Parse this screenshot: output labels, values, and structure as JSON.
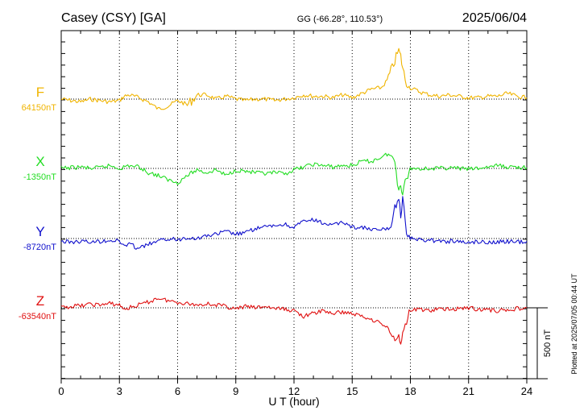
{
  "header": {
    "station": "Casey (CSY)  [GA]",
    "coords": "GG (-66.28°, 110.53°)",
    "date": "2025/06/04"
  },
  "footer_note": "Plotted at 2025/07/05 00:44 UT",
  "chart_data": {
    "type": "line",
    "title": "Casey (CSY)  [GA]",
    "xlabel": "U T (hour)",
    "xlim": [
      0,
      24
    ],
    "xticks": [
      "0",
      "3",
      "6",
      "9",
      "12",
      "15",
      "18",
      "21",
      "24"
    ],
    "grid": true,
    "scale_bar": {
      "label": "500 nT",
      "value": 500
    },
    "series": [
      {
        "name": "F",
        "baseline_label": "64150nT",
        "baseline": 64150,
        "color": "#f0b400",
        "x": [
          0,
          0.5,
          1,
          1.5,
          2,
          2.5,
          3,
          3.25,
          3.5,
          4,
          4.5,
          5,
          5.5,
          6,
          6.5,
          7,
          7.5,
          8,
          8.5,
          9,
          9.5,
          10,
          10.5,
          11,
          11.5,
          12,
          12.5,
          13,
          13.5,
          14,
          14.5,
          15,
          15.5,
          16,
          16.5,
          16.8,
          17,
          17.2,
          17.4,
          17.5,
          17.6,
          17.8,
          18,
          18.5,
          19,
          19.5,
          20,
          20.5,
          21,
          21.5,
          22,
          22.5,
          23,
          23.5,
          24
        ],
        "values": [
          64150,
          64140,
          64130,
          64150,
          64140,
          64130,
          64140,
          64170,
          64180,
          64160,
          64130,
          64080,
          64100,
          64140,
          64110,
          64180,
          64180,
          64150,
          64170,
          64150,
          64140,
          64150,
          64150,
          64140,
          64150,
          64160,
          64180,
          64170,
          64170,
          64160,
          64180,
          64160,
          64190,
          64220,
          64230,
          64280,
          64350,
          64420,
          64500,
          64450,
          64370,
          64250,
          64230,
          64200,
          64180,
          64170,
          64180,
          64170,
          64160,
          64160,
          64170,
          64170,
          64190,
          64170,
          64160
        ]
      },
      {
        "name": "X",
        "baseline_label": "-1350nT",
        "baseline": -1350,
        "color": "#22dd22",
        "x": [
          0,
          0.5,
          1,
          1.5,
          2,
          2.5,
          3,
          3.5,
          4,
          4.5,
          5,
          5.5,
          6,
          6.5,
          7,
          7.5,
          8,
          8.5,
          9,
          9.5,
          10,
          10.5,
          11,
          11.5,
          12,
          12.5,
          13,
          13.5,
          14,
          14.5,
          15,
          15.5,
          16,
          16.5,
          16.8,
          17,
          17.2,
          17.4,
          17.5,
          17.6,
          17.8,
          18,
          18.5,
          19,
          19.5,
          20,
          20.5,
          21,
          21.5,
          22,
          22.5,
          23,
          23.5,
          24
        ],
        "values": [
          -1350,
          -1345,
          -1340,
          -1350,
          -1345,
          -1330,
          -1350,
          -1330,
          -1340,
          -1380,
          -1400,
          -1430,
          -1450,
          -1400,
          -1360,
          -1380,
          -1360,
          -1400,
          -1360,
          -1370,
          -1380,
          -1390,
          -1380,
          -1390,
          -1360,
          -1340,
          -1320,
          -1330,
          -1340,
          -1330,
          -1330,
          -1300,
          -1300,
          -1270,
          -1250,
          -1260,
          -1300,
          -1500,
          -1450,
          -1520,
          -1420,
          -1350,
          -1350,
          -1350,
          -1350,
          -1345,
          -1350,
          -1355,
          -1350,
          -1340,
          -1330,
          -1340,
          -1340,
          -1345
        ]
      },
      {
        "name": "Y",
        "baseline_label": "-8720nT",
        "baseline": -8720,
        "color": "#1010cc",
        "x": [
          0,
          0.5,
          1,
          1.5,
          2,
          2.5,
          3,
          3.25,
          3.5,
          4,
          4.5,
          5,
          5.5,
          6,
          6.5,
          7,
          7.5,
          8,
          8.5,
          9,
          9.5,
          10,
          10.5,
          11,
          11.5,
          12,
          12.5,
          13,
          13.5,
          14,
          14.5,
          15,
          15.5,
          16,
          16.5,
          16.8,
          17,
          17.2,
          17.4,
          17.5,
          17.6,
          17.8,
          18,
          18.5,
          19,
          19.5,
          20,
          20.5,
          21,
          21.5,
          22,
          22.5,
          23,
          23.5,
          24
        ],
        "values": [
          -8740,
          -8745,
          -8740,
          -8745,
          -8740,
          -8730,
          -8740,
          -8770,
          -8760,
          -8790,
          -8760,
          -8740,
          -8720,
          -8730,
          -8710,
          -8720,
          -8700,
          -8690,
          -8670,
          -8690,
          -8680,
          -8650,
          -8640,
          -8630,
          -8620,
          -8640,
          -8600,
          -8590,
          -8610,
          -8630,
          -8600,
          -8640,
          -8640,
          -8660,
          -8660,
          -8650,
          -8640,
          -8500,
          -8420,
          -8560,
          -8450,
          -8680,
          -8720,
          -8730,
          -8730,
          -8740,
          -8740,
          -8740,
          -8750,
          -8740,
          -8745,
          -8745,
          -8740,
          -8745,
          -8740
        ]
      },
      {
        "name": "Z",
        "baseline_label": "-63540nT",
        "baseline": -63540,
        "color": "#e01010",
        "x": [
          0,
          0.5,
          1,
          1.5,
          2,
          2.5,
          3,
          3.25,
          3.5,
          4,
          4.5,
          5,
          5.5,
          6,
          6.5,
          7,
          7.5,
          8,
          8.5,
          9,
          9.5,
          10,
          10.5,
          11,
          11.5,
          12,
          12.5,
          13,
          13.5,
          14,
          14.5,
          15,
          15.5,
          16,
          16.5,
          16.8,
          17,
          17.2,
          17.4,
          17.5,
          17.6,
          17.8,
          18,
          18.5,
          19,
          19.5,
          20,
          20.5,
          21,
          21.5,
          22,
          22.5,
          23,
          23.5,
          24
        ],
        "values": [
          -63540,
          -63530,
          -63525,
          -63515,
          -63520,
          -63510,
          -63520,
          -63550,
          -63540,
          -63520,
          -63500,
          -63470,
          -63490,
          -63500,
          -63510,
          -63520,
          -63510,
          -63520,
          -63530,
          -63550,
          -63530,
          -63540,
          -63530,
          -63545,
          -63550,
          -63560,
          -63600,
          -63580,
          -63560,
          -63580,
          -63570,
          -63580,
          -63600,
          -63620,
          -63650,
          -63680,
          -63720,
          -63760,
          -63740,
          -63800,
          -63700,
          -63640,
          -63560,
          -63550,
          -63560,
          -63550,
          -63550,
          -63545,
          -63540,
          -63550,
          -63555,
          -63560,
          -63555,
          -63545,
          -63540
        ]
      }
    ]
  }
}
